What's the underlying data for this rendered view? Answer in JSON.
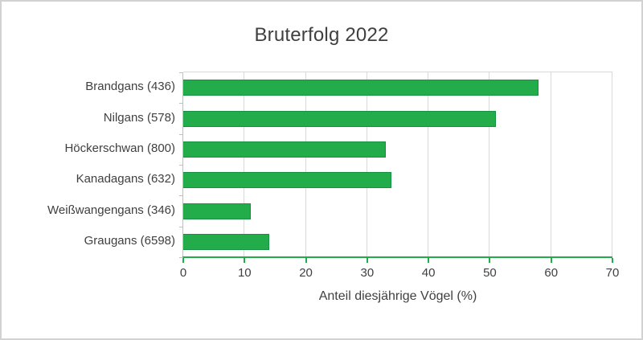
{
  "window": {
    "background": "#ffffff",
    "border_color": "#d2d2d2"
  },
  "chart_data": {
    "type": "bar",
    "orientation": "horizontal",
    "title": "Bruterfolg 2022",
    "categories": [
      "Brandgans (436)",
      "Nilgans (578)",
      "Höckerschwan (800)",
      "Kanadagans (632)",
      "Weißwangengans (346)",
      "Graugans (6598)"
    ],
    "values": [
      58,
      51,
      33,
      34,
      11,
      14
    ],
    "xlabel": "Anteil diesjährige Vögel (%)",
    "ylabel": "",
    "xlim": [
      0,
      70
    ],
    "xticks": [
      0,
      10,
      20,
      30,
      40,
      50,
      60,
      70
    ],
    "grid": true,
    "legend": "none",
    "colors": {
      "bar_fill": "#22ac4a",
      "bar_border": "#169141",
      "gridline": "#d9d9d9",
      "category_axis_line": "#bfbfbf",
      "value_axis_line": "#22ac4a",
      "text": "#404040"
    }
  }
}
